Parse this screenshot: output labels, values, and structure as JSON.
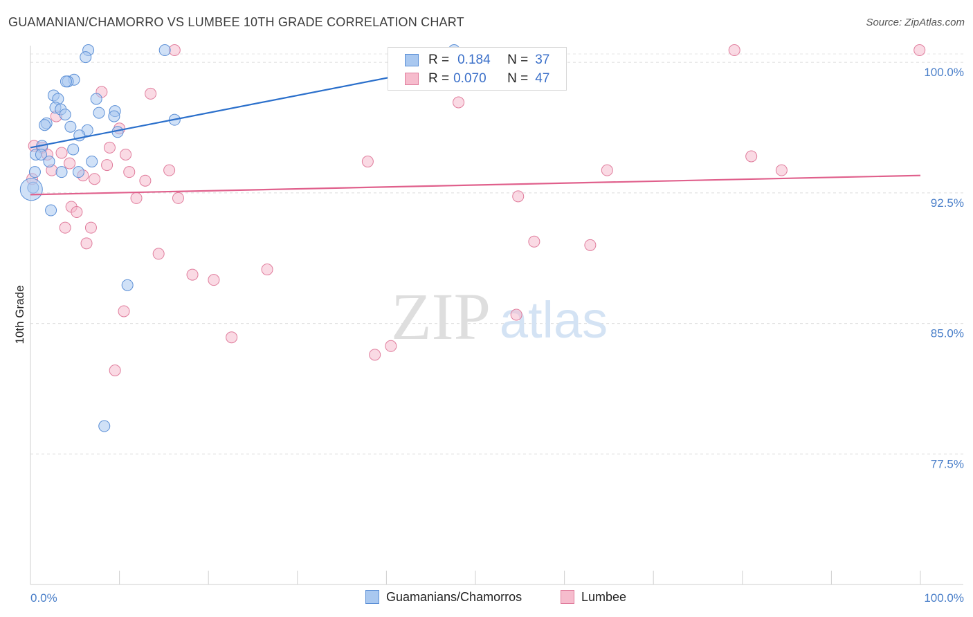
{
  "header": {
    "title": "GUAMANIAN/CHAMORRO VS LUMBEE 10TH GRADE CORRELATION CHART",
    "source": "Source: ZipAtlas.com"
  },
  "watermark": {
    "zip": "ZIP",
    "atlas": "atlas"
  },
  "colors": {
    "blue_fill": "#a9c8f0",
    "blue_stroke": "#5b8fd6",
    "blue_line": "#2a6fcb",
    "pink_fill": "#f6bccd",
    "pink_stroke": "#e07c9c",
    "pink_line": "#e0608c",
    "tick_text": "#4a7fc9"
  },
  "legend": {
    "rows": [
      {
        "r_label": "R =",
        "r_value": "0.184",
        "n_label": "N =",
        "n_value": "37"
      },
      {
        "r_label": "R =",
        "r_value": "0.070",
        "n_label": "N =",
        "n_value": "47"
      }
    ],
    "bottom": [
      "Guamanians/Chamorros",
      "Lumbee"
    ]
  },
  "chart_data": {
    "type": "scatter",
    "title": "GUAMANIAN/CHAMORRO VS LUMBEE 10TH GRADE CORRELATION CHART",
    "xlabel": "",
    "ylabel": "10th Grade",
    "xlim": [
      0,
      100
    ],
    "ylim": [
      70,
      100.8
    ],
    "x_tick_labels": [
      "0.0%",
      "100.0%"
    ],
    "y_ticks": [
      {
        "value": 100.0,
        "label": "100.0%"
      },
      {
        "value": 92.5,
        "label": "92.5%"
      },
      {
        "value": 85.0,
        "label": "85.0%"
      },
      {
        "value": 77.5,
        "label": "77.5%"
      }
    ],
    "series": [
      {
        "name": "Guamanians/Chamorros",
        "r": 0.184,
        "n": 37,
        "trend": {
          "x": [
            0,
            50
          ],
          "y": [
            95.1,
            100.1
          ]
        },
        "points": [
          {
            "x": 6.5,
            "y": 100.7
          },
          {
            "x": 15.1,
            "y": 100.7
          },
          {
            "x": 47.6,
            "y": 100.7
          },
          {
            "x": 6.2,
            "y": 100.3
          },
          {
            "x": 4.9,
            "y": 99.0
          },
          {
            "x": 4.2,
            "y": 98.9
          },
          {
            "x": 4.0,
            "y": 98.9
          },
          {
            "x": 2.6,
            "y": 98.1
          },
          {
            "x": 3.1,
            "y": 97.9
          },
          {
            "x": 7.4,
            "y": 97.9
          },
          {
            "x": 2.8,
            "y": 97.4
          },
          {
            "x": 3.4,
            "y": 97.3
          },
          {
            "x": 9.5,
            "y": 97.2
          },
          {
            "x": 3.9,
            "y": 97.0
          },
          {
            "x": 7.7,
            "y": 97.1
          },
          {
            "x": 9.4,
            "y": 96.9
          },
          {
            "x": 16.2,
            "y": 96.7
          },
          {
            "x": 1.8,
            "y": 96.5
          },
          {
            "x": 1.6,
            "y": 96.4
          },
          {
            "x": 4.5,
            "y": 96.3
          },
          {
            "x": 6.4,
            "y": 96.1
          },
          {
            "x": 9.8,
            "y": 96.0
          },
          {
            "x": 5.5,
            "y": 95.8
          },
          {
            "x": 1.3,
            "y": 95.2
          },
          {
            "x": 4.8,
            "y": 95.0
          },
          {
            "x": 0.6,
            "y": 94.7
          },
          {
            "x": 1.2,
            "y": 94.7
          },
          {
            "x": 2.1,
            "y": 94.3
          },
          {
            "x": 6.9,
            "y": 94.3
          },
          {
            "x": 0.5,
            "y": 93.7
          },
          {
            "x": 3.5,
            "y": 93.7
          },
          {
            "x": 5.4,
            "y": 93.7
          },
          {
            "x": 0.3,
            "y": 92.8
          },
          {
            "x": 2.3,
            "y": 91.5
          },
          {
            "x": 10.9,
            "y": 87.2
          },
          {
            "x": 8.3,
            "y": 79.1
          },
          {
            "x": 0.1,
            "y": 92.7
          }
        ]
      },
      {
        "name": "Lumbee",
        "r": 0.07,
        "n": 47,
        "trend": {
          "x": [
            0,
            100
          ],
          "y": [
            92.4,
            93.5
          ]
        },
        "points": [
          {
            "x": 16.2,
            "y": 100.7
          },
          {
            "x": 79.1,
            "y": 100.7
          },
          {
            "x": 99.9,
            "y": 100.7
          },
          {
            "x": 8.0,
            "y": 98.3
          },
          {
            "x": 13.5,
            "y": 98.2
          },
          {
            "x": 48.1,
            "y": 97.7
          },
          {
            "x": 2.9,
            "y": 96.9
          },
          {
            "x": 10.0,
            "y": 96.2
          },
          {
            "x": 0.4,
            "y": 95.2
          },
          {
            "x": 1.3,
            "y": 95.1
          },
          {
            "x": 8.9,
            "y": 95.1
          },
          {
            "x": 1.9,
            "y": 94.7
          },
          {
            "x": 3.5,
            "y": 94.8
          },
          {
            "x": 10.7,
            "y": 94.7
          },
          {
            "x": 81.0,
            "y": 94.6
          },
          {
            "x": 37.9,
            "y": 94.3
          },
          {
            "x": 4.4,
            "y": 94.2
          },
          {
            "x": 8.6,
            "y": 94.1
          },
          {
            "x": 2.4,
            "y": 93.8
          },
          {
            "x": 11.1,
            "y": 93.7
          },
          {
            "x": 15.6,
            "y": 93.8
          },
          {
            "x": 64.8,
            "y": 93.8
          },
          {
            "x": 84.4,
            "y": 93.8
          },
          {
            "x": 5.9,
            "y": 93.5
          },
          {
            "x": 7.2,
            "y": 93.3
          },
          {
            "x": 12.9,
            "y": 93.2
          },
          {
            "x": 0.2,
            "y": 93.3
          },
          {
            "x": 11.9,
            "y": 92.2
          },
          {
            "x": 16.6,
            "y": 92.2
          },
          {
            "x": 54.8,
            "y": 92.3
          },
          {
            "x": 4.6,
            "y": 91.7
          },
          {
            "x": 5.2,
            "y": 91.4
          },
          {
            "x": 3.9,
            "y": 90.5
          },
          {
            "x": 6.8,
            "y": 90.5
          },
          {
            "x": 6.3,
            "y": 89.6
          },
          {
            "x": 56.6,
            "y": 89.7
          },
          {
            "x": 62.9,
            "y": 89.5
          },
          {
            "x": 14.4,
            "y": 89.0
          },
          {
            "x": 26.6,
            "y": 88.1
          },
          {
            "x": 18.2,
            "y": 87.8
          },
          {
            "x": 20.6,
            "y": 87.5
          },
          {
            "x": 10.5,
            "y": 85.7
          },
          {
            "x": 54.6,
            "y": 85.5
          },
          {
            "x": 22.6,
            "y": 84.2
          },
          {
            "x": 40.5,
            "y": 83.7
          },
          {
            "x": 38.7,
            "y": 83.2
          },
          {
            "x": 9.5,
            "y": 82.3
          }
        ]
      }
    ],
    "legend_position": "top-center"
  }
}
